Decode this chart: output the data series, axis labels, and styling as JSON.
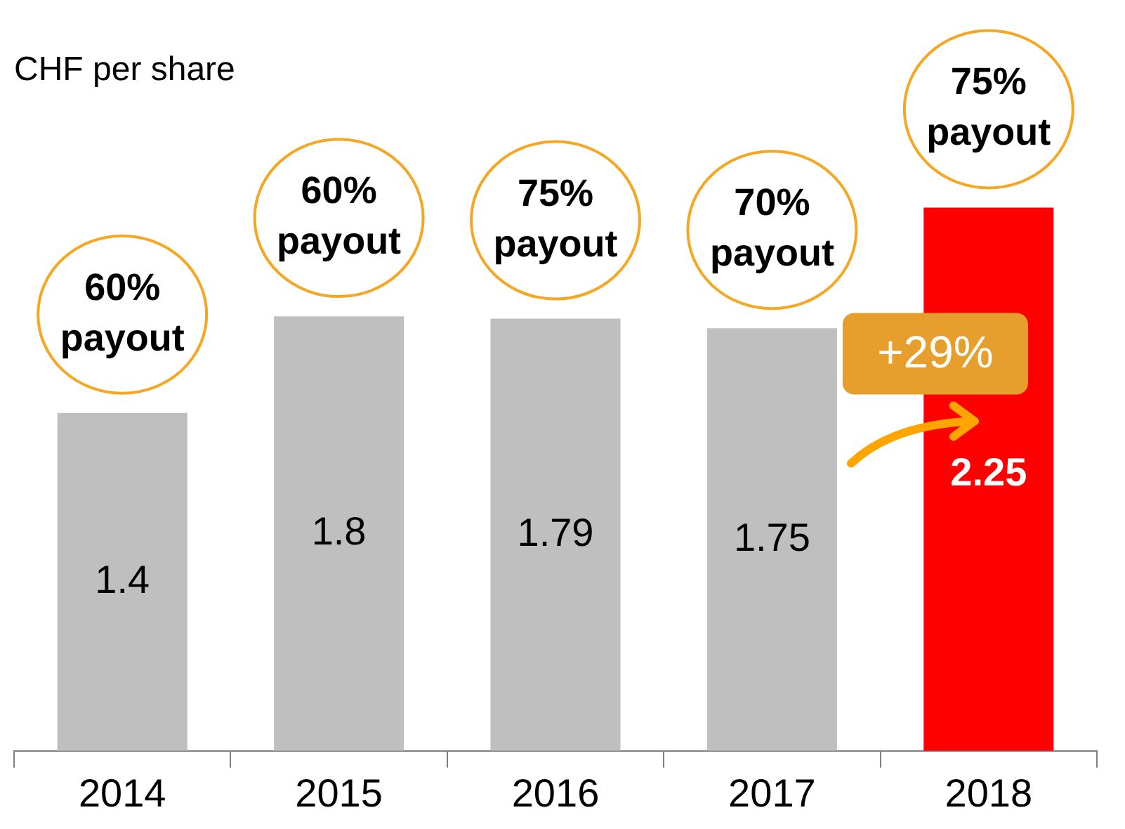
{
  "chart_data": {
    "type": "bar",
    "ylabel": "CHF per share",
    "categories": [
      "2014",
      "2015",
      "2016",
      "2017",
      "2018"
    ],
    "values": [
      1.4,
      1.8,
      1.79,
      1.75,
      2.25
    ],
    "colors": [
      "#bfbfbf",
      "#bfbfbf",
      "#bfbfbf",
      "#bfbfbf",
      "#ff0000"
    ],
    "data_labels": true,
    "annotations": [
      "60% payout",
      "60% payout",
      "75% payout",
      "70% payout",
      "75% payout",
      "+29%"
    ],
    "legend": false,
    "grid": false
  }
}
